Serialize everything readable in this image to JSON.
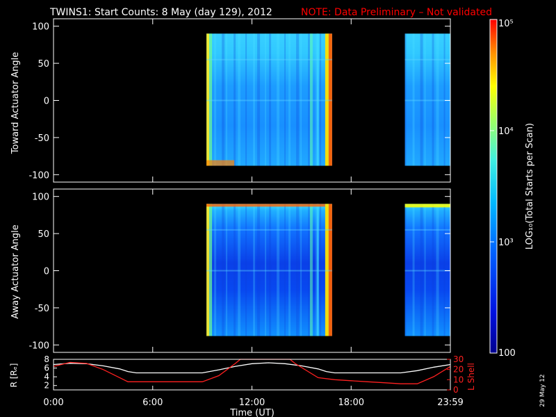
{
  "header": {
    "title": "TWINS1: Start Counts:  8 May (day 129), 2012",
    "note": "NOTE: Data Preliminary – Not validated"
  },
  "footer": {
    "date_stamp": "29 May 12"
  },
  "colors": {
    "background": "#000000",
    "axes": "#ffffff",
    "note": "#ff0000",
    "r_line": "#ffffff",
    "lshell_line": "#ff2020",
    "colormap": [
      "#0000a0",
      "#0038ff",
      "#00a0ff",
      "#30e0ff",
      "#80ff80",
      "#ffff00",
      "#ff8000",
      "#ff0000"
    ]
  },
  "chart_data": [
    {
      "type": "heatmap",
      "panel": "top",
      "ylabel": "Toward Actuator Angle",
      "ylim": [
        -110,
        110
      ],
      "yticks": [
        100,
        50,
        0,
        -50,
        -100
      ],
      "xlim": [
        0,
        24
      ],
      "angle_range": [
        -88,
        90
      ],
      "data_intervals_hours": [
        [
          9.25,
          16.85
        ],
        [
          21.25,
          24.0
        ]
      ]
    },
    {
      "type": "heatmap",
      "panel": "middle",
      "ylabel": "Away Actuator Angle",
      "ylim": [
        -110,
        110
      ],
      "yticks": [
        100,
        50,
        0,
        -50,
        -100
      ],
      "xlim": [
        0,
        24
      ],
      "angle_range": [
        -88,
        90
      ],
      "data_intervals_hours": [
        [
          9.25,
          16.85
        ],
        [
          21.25,
          24.0
        ]
      ]
    },
    {
      "type": "line",
      "panel": "bottom",
      "xlabel": "Time (UT)",
      "xlim": [
        0,
        24
      ],
      "x_tick_labels": [
        "0:00",
        "6:00",
        "12:00",
        "18:00",
        "23:59"
      ],
      "x_tick_hours": [
        0,
        6,
        12,
        18,
        24
      ],
      "ylabel_left": "R [Rₑ]",
      "ylim_left": [
        1,
        8
      ],
      "yticks_left": [
        "8",
        "6",
        "4",
        "2"
      ],
      "ylabel_right": "L Shell",
      "ylim_right": [
        0,
        30
      ],
      "yticks_right": [
        "30",
        "20",
        "10",
        "0"
      ],
      "series": [
        {
          "axis": "left",
          "x": [
            0,
            1,
            2,
            3,
            4,
            4.5,
            5,
            6,
            7,
            8,
            9,
            10,
            11,
            12,
            13,
            14,
            15,
            16,
            16.5,
            17,
            18,
            19,
            20,
            21,
            22,
            23,
            24
          ],
          "y": [
            6.8,
            7.1,
            7.0,
            6.5,
            5.8,
            5.2,
            4.9,
            4.9,
            4.9,
            4.9,
            4.9,
            5.6,
            6.4,
            7.0,
            7.2,
            7.0,
            6.5,
            5.8,
            5.2,
            4.9,
            4.9,
            4.9,
            4.9,
            4.9,
            5.4,
            6.2,
            6.8
          ]
        },
        {
          "axis": "right",
          "x": [
            0,
            1,
            2,
            3,
            4,
            4.5,
            5,
            6,
            7,
            8,
            9,
            10,
            11,
            11.3,
            14.3,
            14.6,
            16,
            17,
            18,
            19,
            20,
            21,
            22,
            23,
            24
          ],
          "y": [
            23,
            27,
            26,
            20,
            12,
            8,
            8,
            8,
            8,
            8,
            8,
            14,
            26,
            30,
            30,
            26,
            12,
            10,
            9,
            8,
            7,
            6,
            6,
            13,
            23
          ]
        }
      ]
    }
  ],
  "colorbar": {
    "label": "LOG₁₀(Total Starts per Scan)",
    "tick_labels": [
      "10⁵",
      "10⁴",
      "10³",
      "100"
    ],
    "ticks_log10": [
      5,
      4,
      3,
      2
    ]
  }
}
